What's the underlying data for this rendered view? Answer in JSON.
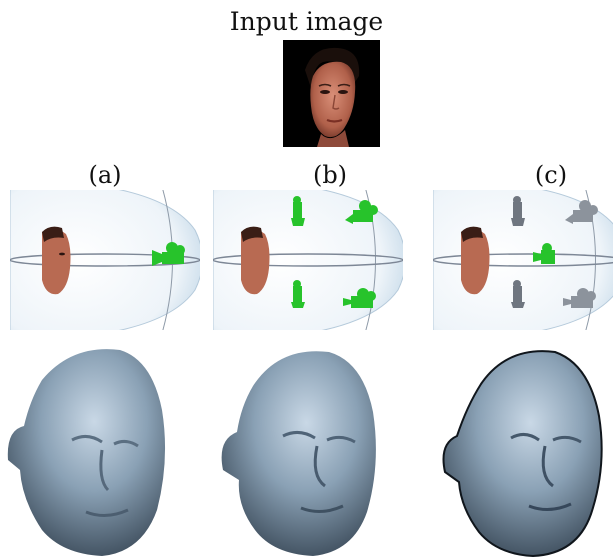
{
  "figure": {
    "title": "Input image",
    "panels": [
      {
        "label": "(a)"
      },
      {
        "label": "(b)"
      },
      {
        "label": "(c)"
      }
    ]
  },
  "colors": {
    "camera_active": "#27c32b",
    "camera_inactive": "#6f7680",
    "sphere": "#dbe8f2",
    "skin": "#c0765e",
    "mesh": "#7f97ad"
  }
}
